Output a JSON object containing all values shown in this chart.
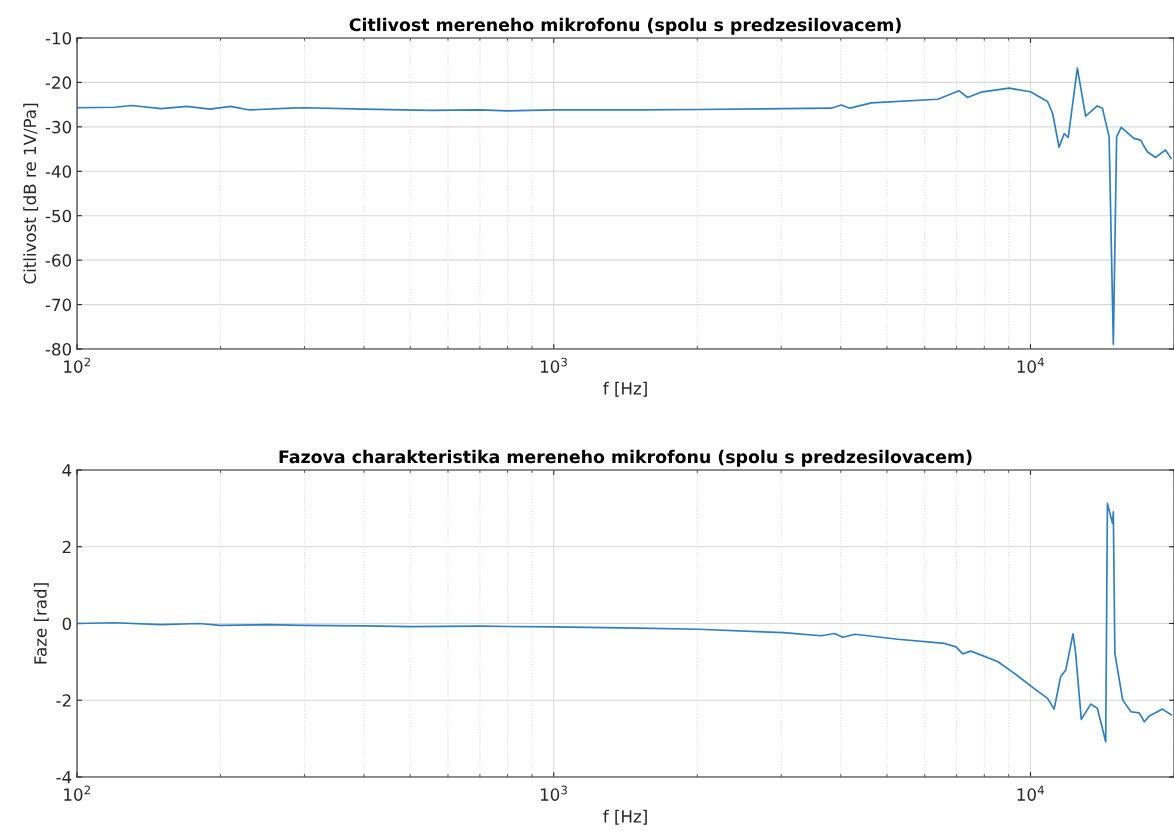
{
  "chart_data": [
    {
      "type": "line",
      "title": "Citlivost mereneho mikrofonu (spolu s predzesilovacem)",
      "xlabel": "f [Hz]",
      "ylabel": "Citlivost [dB re 1V/Pa]",
      "log": "x",
      "grid": true,
      "marker": "none",
      "line_style": "solid",
      "xlim": [
        100,
        20000
      ],
      "xticks": [
        {
          "value": 100,
          "label": "10$^{2}$"
        },
        {
          "value": 1000,
          "label": "10$^{3}$"
        },
        {
          "value": 10000,
          "label": "10$^{4}$"
        }
      ],
      "ylim": [
        -80,
        -10
      ],
      "yticks": [
        -80,
        -70,
        -60,
        -50,
        -40,
        -30,
        -20,
        -10
      ],
      "series": [
        {
          "color": "#2f7fc0",
          "x": [
            100,
            120,
            130,
            150,
            170,
            190,
            210,
            230,
            280,
            300,
            400,
            550,
            700,
            800,
            1000,
            1500,
            2010,
            3818,
            4010,
            4178,
            4638,
            6386,
            7090,
            7380,
            7870,
            9020,
            10000,
            10860,
            11130,
            11480,
            11770,
            12000,
            12540,
            13050,
            13810,
            14150,
            14620,
            14920,
            15160,
            15500,
            16480,
            17020,
            17580,
            18290,
            19200,
            19720
          ],
          "values": [
            -25.7,
            -25.6,
            -25.2,
            -25.9,
            -25.4,
            -26.0,
            -25.4,
            -26.2,
            -25.8,
            -25.7,
            -26.0,
            -26.3,
            -26.2,
            -26.4,
            -26.2,
            -26.2,
            -26.1,
            -25.8,
            -25.1,
            -25.8,
            -24.6,
            -23.8,
            -21.9,
            -23.4,
            -22.2,
            -21.3,
            -22.1,
            -24.3,
            -27.0,
            -34.6,
            -31.5,
            -32.4,
            -16.8,
            -27.6,
            -25.3,
            -25.8,
            -32.2,
            -78.9,
            -32.2,
            -30.1,
            -32.6,
            -33.0,
            -35.6,
            -36.9,
            -35.2,
            -37.1
          ]
        }
      ]
    },
    {
      "type": "line",
      "title": "Fazova charakteristika mereneho mikrofonu (spolu s predzesilovacem)",
      "xlabel": "f [Hz]",
      "ylabel": "Faze [rad]",
      "log": "x",
      "grid": true,
      "marker": "none",
      "line_style": "solid",
      "xlim": [
        100,
        20000
      ],
      "xticks": [
        {
          "value": 100,
          "label": "10$^{2}$"
        },
        {
          "value": 1000,
          "label": "10$^{3}$"
        },
        {
          "value": 10000,
          "label": "10$^{4}$"
        }
      ],
      "ylim": [
        -4,
        4
      ],
      "yticks": [
        -4,
        -2,
        0,
        2,
        4
      ],
      "series": [
        {
          "color": "#2f7fc0",
          "x": [
            100,
            120,
            150,
            180,
            200,
            250,
            300,
            400,
            500,
            700,
            1000,
            1500,
            2010,
            3030,
            3640,
            3880,
            4040,
            4280,
            5270,
            6600,
            6980,
            7210,
            7500,
            8530,
            9250,
            10170,
            10860,
            11210,
            11570,
            11860,
            12280,
            12440,
            12780,
            13380,
            13810,
            14380,
            14500,
            14860,
            14920,
            15030,
            15610,
            16240,
            16900,
            17330,
            17750,
            18920,
            19720
          ],
          "values": [
            0.0,
            0.02,
            -0.03,
            0.0,
            -0.05,
            -0.03,
            -0.05,
            -0.06,
            -0.08,
            -0.07,
            -0.09,
            -0.12,
            -0.15,
            -0.24,
            -0.32,
            -0.26,
            -0.36,
            -0.28,
            -0.41,
            -0.52,
            -0.61,
            -0.79,
            -0.72,
            -0.99,
            -1.3,
            -1.69,
            -1.95,
            -2.23,
            -1.38,
            -1.21,
            -0.27,
            -0.78,
            -2.5,
            -2.1,
            -2.21,
            -3.08,
            3.13,
            2.61,
            2.91,
            -0.78,
            -1.99,
            -2.3,
            -2.33,
            -2.56,
            -2.41,
            -2.23,
            -2.38
          ]
        }
      ]
    }
  ]
}
